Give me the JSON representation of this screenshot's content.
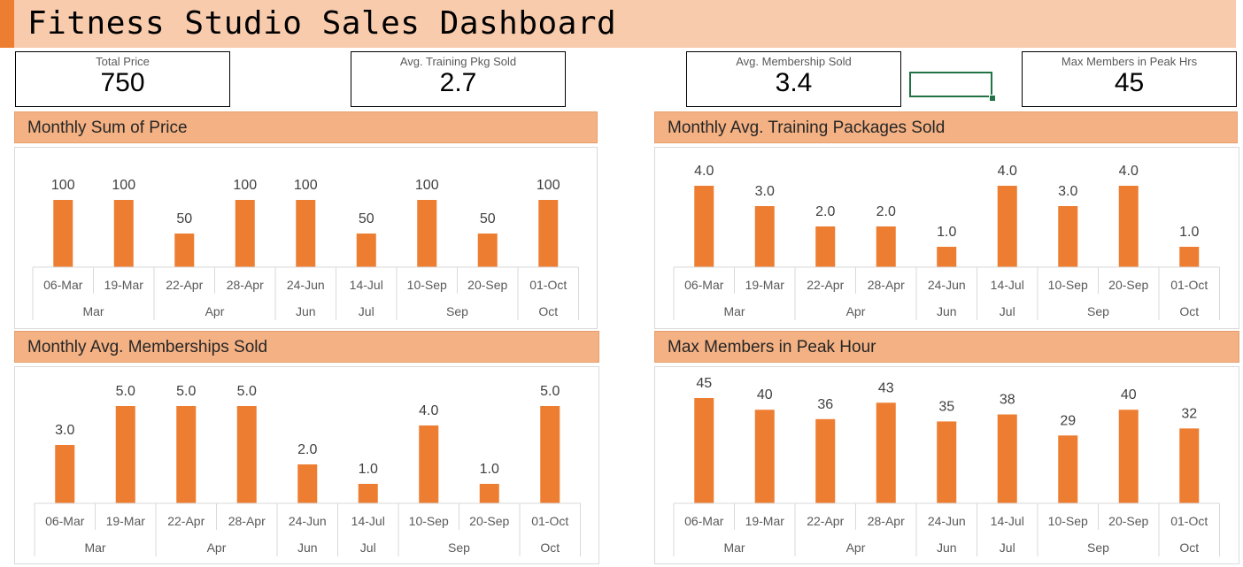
{
  "title": "Fitness Studio Sales Dashboard",
  "kpis": [
    {
      "label": "Total Price",
      "value": "750"
    },
    {
      "label": "Avg. Training Pkg Sold",
      "value": "2.7"
    },
    {
      "label": "Avg. Membership Sold",
      "value": "3.4"
    },
    {
      "label": "Max Members in Peak Hrs",
      "value": "45"
    }
  ],
  "colors": {
    "bar": "#ed7d31",
    "header": "#f4b183",
    "title_bar": "#f8cbad",
    "accent": "#ed7d31"
  },
  "chart_data": [
    {
      "type": "bar",
      "title": "Monthly Sum of Price",
      "categories": [
        "06-Mar",
        "19-Mar",
        "22-Apr",
        "28-Apr",
        "24-Jun",
        "14-Jul",
        "10-Sep",
        "20-Sep",
        "01-Oct"
      ],
      "groups": [
        {
          "label": "Mar",
          "count": 2
        },
        {
          "label": "Apr",
          "count": 2
        },
        {
          "label": "Jun",
          "count": 1
        },
        {
          "label": "Jul",
          "count": 1
        },
        {
          "label": "Sep",
          "count": 2
        },
        {
          "label": "Oct",
          "count": 1
        }
      ],
      "values": [
        100,
        100,
        50,
        100,
        100,
        50,
        100,
        50,
        100
      ],
      "value_labels": [
        "100",
        "100",
        "50",
        "100",
        "100",
        "50",
        "100",
        "50",
        "100"
      ],
      "ylim": [
        0,
        100
      ],
      "grid": false,
      "legend": "none"
    },
    {
      "type": "bar",
      "title": "Monthly Avg. Training Packages Sold",
      "categories": [
        "06-Mar",
        "19-Mar",
        "22-Apr",
        "28-Apr",
        "24-Jun",
        "14-Jul",
        "10-Sep",
        "20-Sep",
        "01-Oct"
      ],
      "groups": [
        {
          "label": "Mar",
          "count": 2
        },
        {
          "label": "Apr",
          "count": 2
        },
        {
          "label": "Jun",
          "count": 1
        },
        {
          "label": "Jul",
          "count": 1
        },
        {
          "label": "Sep",
          "count": 2
        },
        {
          "label": "Oct",
          "count": 1
        }
      ],
      "values": [
        4.0,
        3.0,
        2.0,
        2.0,
        1.0,
        4.0,
        3.0,
        4.0,
        1.0
      ],
      "value_labels": [
        "4.0",
        "3.0",
        "2.0",
        "2.0",
        "1.0",
        "4.0",
        "3.0",
        "4.0",
        "1.0"
      ],
      "ylim": [
        0,
        4
      ],
      "grid": false,
      "legend": "none"
    },
    {
      "type": "bar",
      "title": "Monthly Avg. Memberships Sold",
      "categories": [
        "06-Mar",
        "19-Mar",
        "22-Apr",
        "28-Apr",
        "24-Jun",
        "14-Jul",
        "10-Sep",
        "20-Sep",
        "01-Oct"
      ],
      "groups": [
        {
          "label": "Mar",
          "count": 2
        },
        {
          "label": "Apr",
          "count": 2
        },
        {
          "label": "Jun",
          "count": 1
        },
        {
          "label": "Jul",
          "count": 1
        },
        {
          "label": "Sep",
          "count": 2
        },
        {
          "label": "Oct",
          "count": 1
        }
      ],
      "values": [
        3.0,
        5.0,
        5.0,
        5.0,
        2.0,
        1.0,
        4.0,
        1.0,
        5.0
      ],
      "value_labels": [
        "3.0",
        "5.0",
        "5.0",
        "5.0",
        "2.0",
        "1.0",
        "4.0",
        "1.0",
        "5.0"
      ],
      "ylim": [
        0,
        5
      ],
      "grid": false,
      "legend": "none"
    },
    {
      "type": "bar",
      "title": "Max Members in Peak Hour",
      "categories": [
        "06-Mar",
        "19-Mar",
        "22-Apr",
        "28-Apr",
        "24-Jun",
        "14-Jul",
        "10-Sep",
        "20-Sep",
        "01-Oct"
      ],
      "groups": [
        {
          "label": "Mar",
          "count": 2
        },
        {
          "label": "Apr",
          "count": 2
        },
        {
          "label": "Jun",
          "count": 1
        },
        {
          "label": "Jul",
          "count": 1
        },
        {
          "label": "Sep",
          "count": 2
        },
        {
          "label": "Oct",
          "count": 1
        }
      ],
      "values": [
        45,
        40,
        36,
        43,
        35,
        38,
        29,
        40,
        32
      ],
      "value_labels": [
        "45",
        "40",
        "36",
        "43",
        "35",
        "38",
        "29",
        "40",
        "32"
      ],
      "ylim": [
        0,
        45
      ],
      "grid": false,
      "legend": "none"
    }
  ]
}
